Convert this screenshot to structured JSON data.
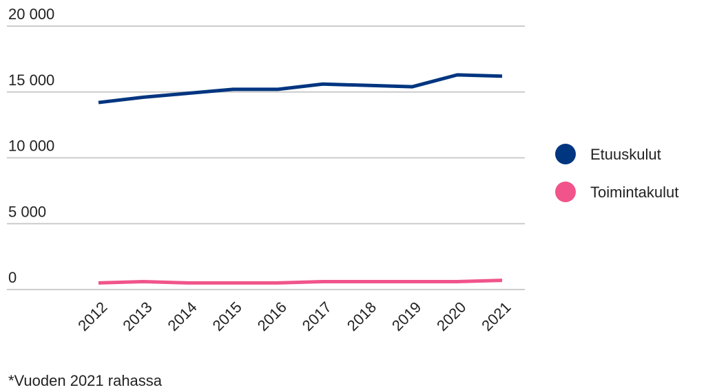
{
  "chart_data": {
    "type": "line",
    "categories": [
      "2012",
      "2013",
      "2014",
      "2015",
      "2016",
      "2017",
      "2018",
      "2019",
      "2020",
      "2021"
    ],
    "series": [
      {
        "name": "Etuuskulut",
        "color": "#003580",
        "values": [
          14200,
          14600,
          14900,
          15200,
          15200,
          15600,
          15500,
          15400,
          16300,
          16200
        ]
      },
      {
        "name": "Toimintakulut",
        "color": "#f0548a",
        "values": [
          500,
          600,
          500,
          500,
          500,
          600,
          600,
          600,
          600,
          700
        ]
      }
    ],
    "ylim": [
      0,
      20000
    ],
    "yticks": [
      0,
      {
        "value": 5000,
        "label": "5 000"
      },
      {
        "value": 10000,
        "label": "10 000"
      },
      {
        "value": 15000,
        "label": "15 000"
      },
      {
        "value": 20000,
        "label": "20 000"
      }
    ],
    "grid": true,
    "legend": "right",
    "note": "*Vuoden 2021 rahassa"
  }
}
